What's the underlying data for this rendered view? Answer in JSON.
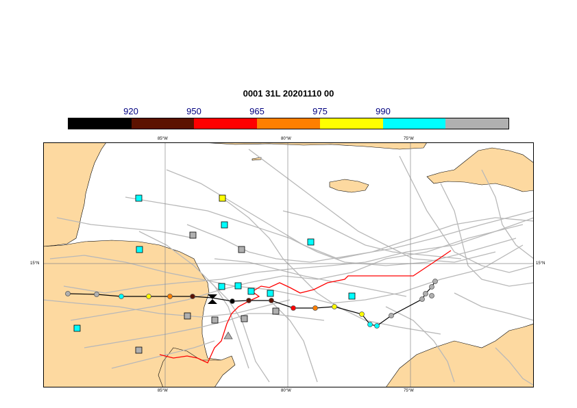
{
  "title": "0001 31L 20201110 00",
  "colorbar": {
    "colors": [
      "#000000",
      "#5c1200",
      "#ff0000",
      "#ff7f00",
      "#ffff00",
      "#00ffff",
      "#b0b0b0"
    ],
    "labels": [
      "920",
      "950",
      "965",
      "975",
      "990"
    ]
  },
  "axes": {
    "lon_labels_top": [
      "85°W",
      "80°W",
      "75°W"
    ],
    "lon_labels_bottom": [
      "85°W",
      "80°W",
      "75°W"
    ],
    "lat_label_left": "15°N",
    "lat_label_right": "15°N"
  },
  "colors": {
    "land": "#fdd9a0",
    "ocean": "#ffffff",
    "grid": "#888888",
    "spaghetti": "#b8b8b8",
    "observed_track": "#ff0000",
    "ensemble_mean_track": "#000000"
  },
  "icons": {
    "current_position": "hourglass-icon",
    "members": "square-marker-icon",
    "track_points": "circle-marker-icon"
  }
}
